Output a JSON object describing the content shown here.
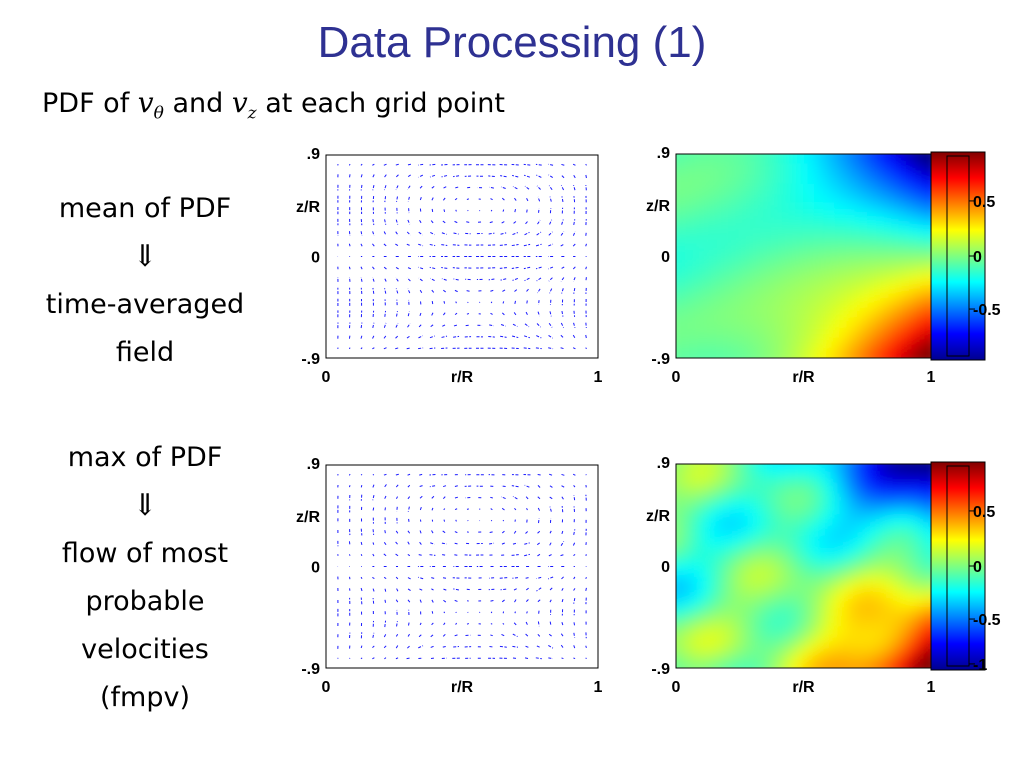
{
  "title": "Data Processing (1)",
  "subtitle": {
    "prefix": "PDF of ",
    "var1": "v",
    "var1_sub": "θ",
    "conj": " and ",
    "var2": "v",
    "var2_sub": "z",
    "suffix": " at each grid point"
  },
  "rows": [
    {
      "lines": [
        "mean of PDF",
        "⇓",
        "time-averaged",
        "field"
      ]
    },
    {
      "lines": [
        "max of PDF",
        "⇓",
        "flow of most",
        "probable",
        "velocities",
        "(fmpv)"
      ]
    }
  ],
  "colors": {
    "title": "#2e3192",
    "arrows": "#1a1aff"
  },
  "chart_data": [
    {
      "type": "quiver",
      "xlabel": "r/R",
      "ylabel": "z/R",
      "xticks": [
        "0",
        "r/R",
        "1"
      ],
      "yticks": [
        ".9",
        "z/R",
        "0",
        "-.9"
      ],
      "xlim": [
        0,
        1
      ],
      "ylim": [
        -0.9,
        0.9
      ]
    },
    {
      "type": "heatmap",
      "xlabel": "r/R",
      "ylabel": "z/R",
      "xticks": [
        "0",
        "r/R",
        "1"
      ],
      "yticks": [
        ".9",
        "z/R",
        "0",
        "-.9"
      ],
      "xlim": [
        0,
        1
      ],
      "ylim": [
        -0.9,
        0.9
      ],
      "colorbar": {
        "ticks": [
          "0.5",
          "0",
          "-0.5"
        ],
        "range": [
          -1,
          1
        ],
        "colormap": "jet"
      }
    },
    {
      "type": "quiver",
      "xlabel": "r/R",
      "ylabel": "z/R",
      "xticks": [
        "0",
        "r/R",
        "1"
      ],
      "yticks": [
        ".9",
        "z/R",
        "0",
        "-.9"
      ],
      "xlim": [
        0,
        1
      ],
      "ylim": [
        -0.9,
        0.9
      ]
    },
    {
      "type": "heatmap",
      "xlabel": "r/R",
      "ylabel": "z/R",
      "xticks": [
        "0",
        "r/R",
        "1"
      ],
      "yticks": [
        ".9",
        "z/R",
        "0",
        "-.9"
      ],
      "xlim": [
        0,
        1
      ],
      "ylim": [
        -0.9,
        0.9
      ],
      "colorbar": {
        "ticks": [
          "0.5",
          "0",
          "-0.5",
          "-1"
        ],
        "range": [
          -1,
          1
        ],
        "colormap": "jet"
      }
    }
  ]
}
